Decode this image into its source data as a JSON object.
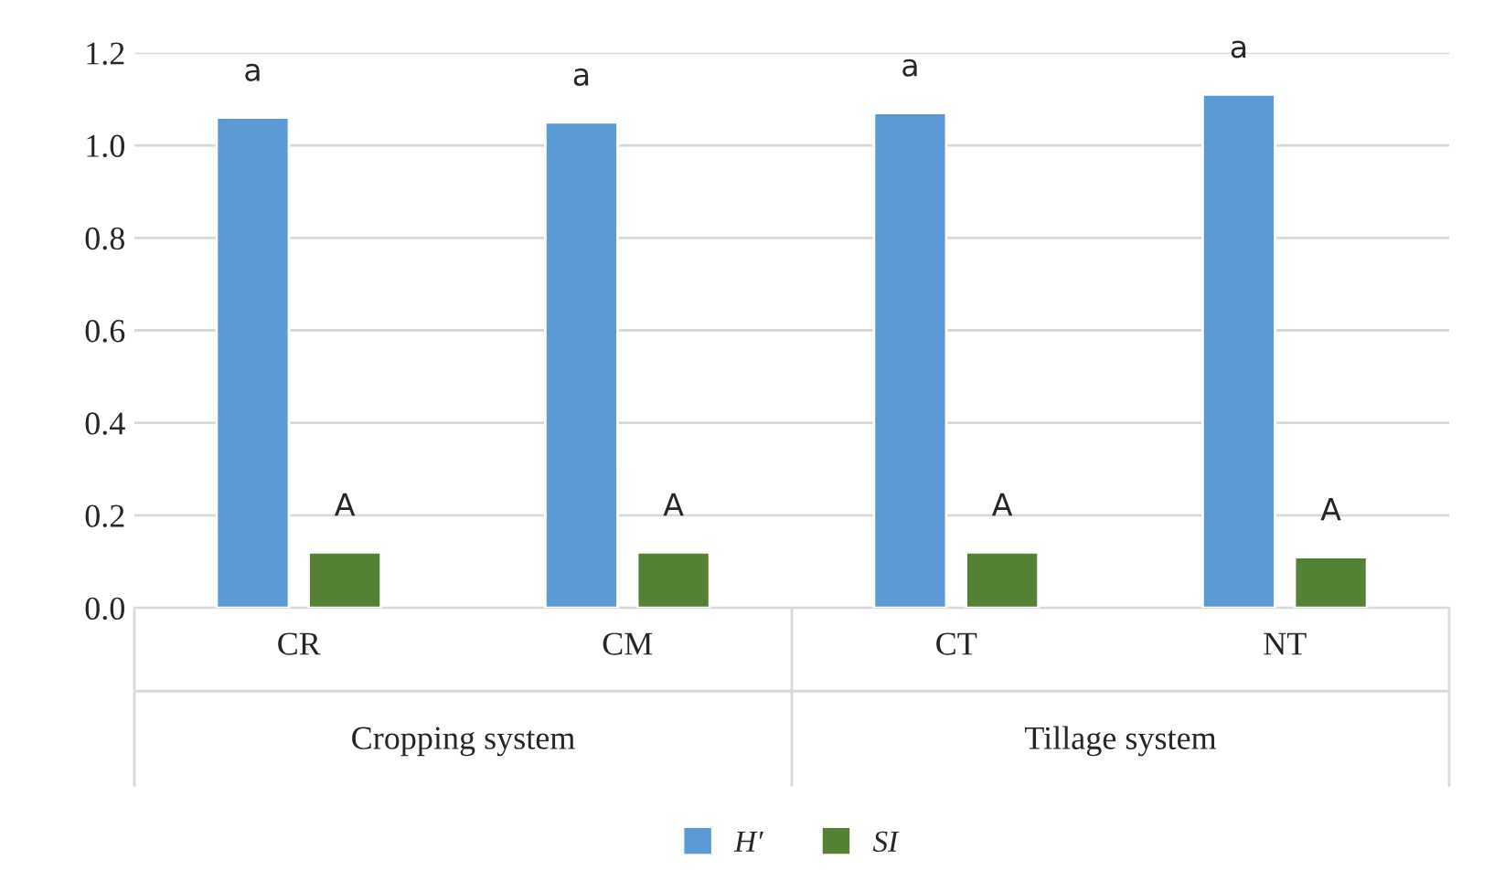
{
  "chart_data": {
    "type": "bar",
    "categories": [
      "CR",
      "CM",
      "CT",
      "NT"
    ],
    "series": [
      {
        "name": "H′",
        "color": "#5b9bd5",
        "values": [
          1.06,
          1.05,
          1.07,
          1.11
        ]
      },
      {
        "name": "SI",
        "color": "#548235",
        "values": [
          0.12,
          0.12,
          0.12,
          0.11
        ]
      }
    ],
    "ylim": [
      0,
      1.2
    ],
    "yticks": [
      {
        "value": 0,
        "label": "0.0"
      },
      0.2,
      0.4,
      0.6,
      0.8,
      {
        "value": 1.0,
        "label": "1.0"
      },
      1.2
    ],
    "grid": "y",
    "legend": "bottom",
    "annotations": [
      "a",
      "a",
      "a",
      "a",
      "A",
      "A",
      "A",
      "A",
      "Cropping system",
      "Tillage system"
    ]
  }
}
